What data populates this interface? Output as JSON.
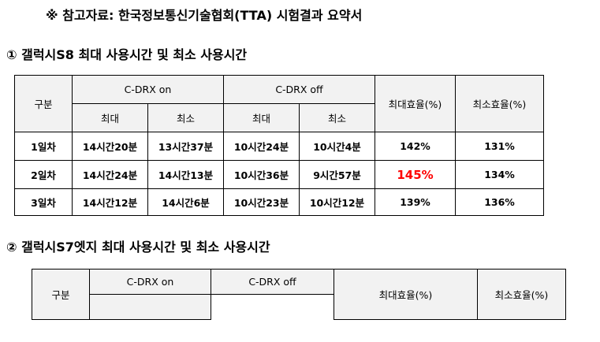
{
  "title": "※  참고자료: 한국정보통신기술협회(TTA) 시험결과 요약서",
  "section1": {
    "heading": "① 갤럭시S8 최대 사용시간 및 최소 사용시간",
    "headers": {
      "category": "구분",
      "cdrx_on": "C-DRX on",
      "cdrx_off": "C-DRX off",
      "max": "최대",
      "min": "최소",
      "max_eff": "최대효율(%)",
      "min_eff": "최소효율(%)"
    },
    "rows": [
      [
        "1일차",
        "14시간20분",
        "13시간37분",
        "10시간24분",
        "10시간4분",
        "142%",
        "131%"
      ],
      [
        "2일차",
        "14시간24분",
        "14시간13분",
        "10시간36분",
        "9시간57분",
        "145%",
        "134%"
      ],
      [
        "3일차",
        "14시간12분",
        "14시간6분",
        "10시간23분",
        "10시간12분",
        "139%",
        "136%"
      ]
    ],
    "highlight_color": "#ff0000"
  },
  "section2": {
    "heading": "② 갤럭시S7엣지 최대 사용시간 및 최소 사용시간",
    "headers": {
      "category": "구분",
      "cdrx_on": "C-DRX on",
      "cdrx_off": "C-DRX off",
      "max_eff": "최대효율(%)",
      "min_eff": "최소효율(%)"
    }
  }
}
